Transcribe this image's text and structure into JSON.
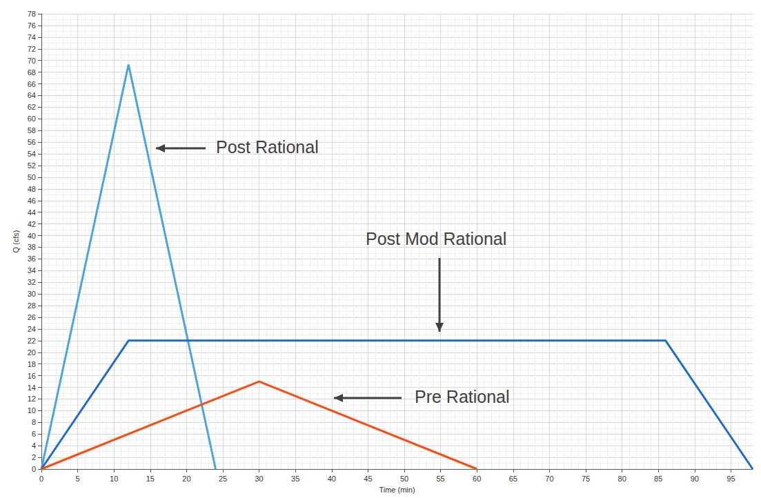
{
  "chart_data": {
    "type": "line",
    "x_label": "Time (min)",
    "y_label": "Q (cfs)",
    "xlim": [
      0,
      98
    ],
    "xticks": [
      0,
      5,
      10,
      15,
      20,
      25,
      30,
      35,
      40,
      45,
      50,
      55,
      60,
      65,
      70,
      75,
      80,
      85,
      90,
      95
    ],
    "ylim": [
      0,
      78
    ],
    "yticks": [
      0,
      2,
      4,
      6,
      8,
      10,
      12,
      14,
      16,
      18,
      20,
      22,
      24,
      26,
      28,
      30,
      32,
      34,
      36,
      38,
      40,
      42,
      44,
      46,
      48,
      50,
      52,
      54,
      56,
      58,
      60,
      62,
      64,
      66,
      68,
      70,
      72,
      74,
      76,
      78
    ],
    "grid": true,
    "series": [
      {
        "name": "Post Rational",
        "color": "#4da3e0",
        "x": [
          0,
          12,
          24
        ],
        "values": [
          0,
          69.3,
          0
        ]
      },
      {
        "name": "Post Mod Rational",
        "color": "#1c6cc4",
        "x": [
          0,
          12,
          86,
          98
        ],
        "values": [
          0,
          22,
          22,
          0
        ]
      },
      {
        "name": "Pre Rational",
        "color": "#ff4a0f",
        "x": [
          0,
          30,
          60
        ],
        "values": [
          0,
          15,
          0
        ]
      }
    ],
    "annotations": [
      "Post Rational",
      "Post Mod Rational",
      "Pre Rational"
    ]
  }
}
